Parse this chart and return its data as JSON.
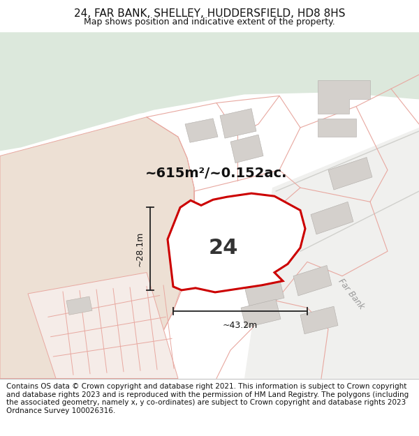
{
  "title": "24, FAR BANK, SHELLEY, HUDDERSFIELD, HD8 8HS",
  "subtitle": "Map shows position and indicative extent of the property.",
  "footer": "Contains OS data © Crown copyright and database right 2021. This information is subject to Crown copyright and database rights 2023 and is reproduced with the permission of HM Land Registry. The polygons (including the associated geometry, namely x, y co-ordinates) are subject to Crown copyright and database rights 2023 Ordnance Survey 100026316.",
  "area_label": "~615m²/~0.152ac.",
  "number_label": "24",
  "dim_h": "~28.1m",
  "dim_w": "~43.2m",
  "road_label": "Far Bank",
  "map_bg": "#ffffff",
  "green_color": "#dce8dc",
  "beige_color": "#ede0d4",
  "road_color": "#eeeeee",
  "building_color": "#d4d0cc",
  "boundary_color": "#e8a8a0",
  "highlight_color": "#cc0000",
  "title_fontsize": 11,
  "subtitle_fontsize": 9,
  "footer_fontsize": 7.5,
  "area_fontsize": 14,
  "number_fontsize": 22,
  "dim_fontsize": 9
}
